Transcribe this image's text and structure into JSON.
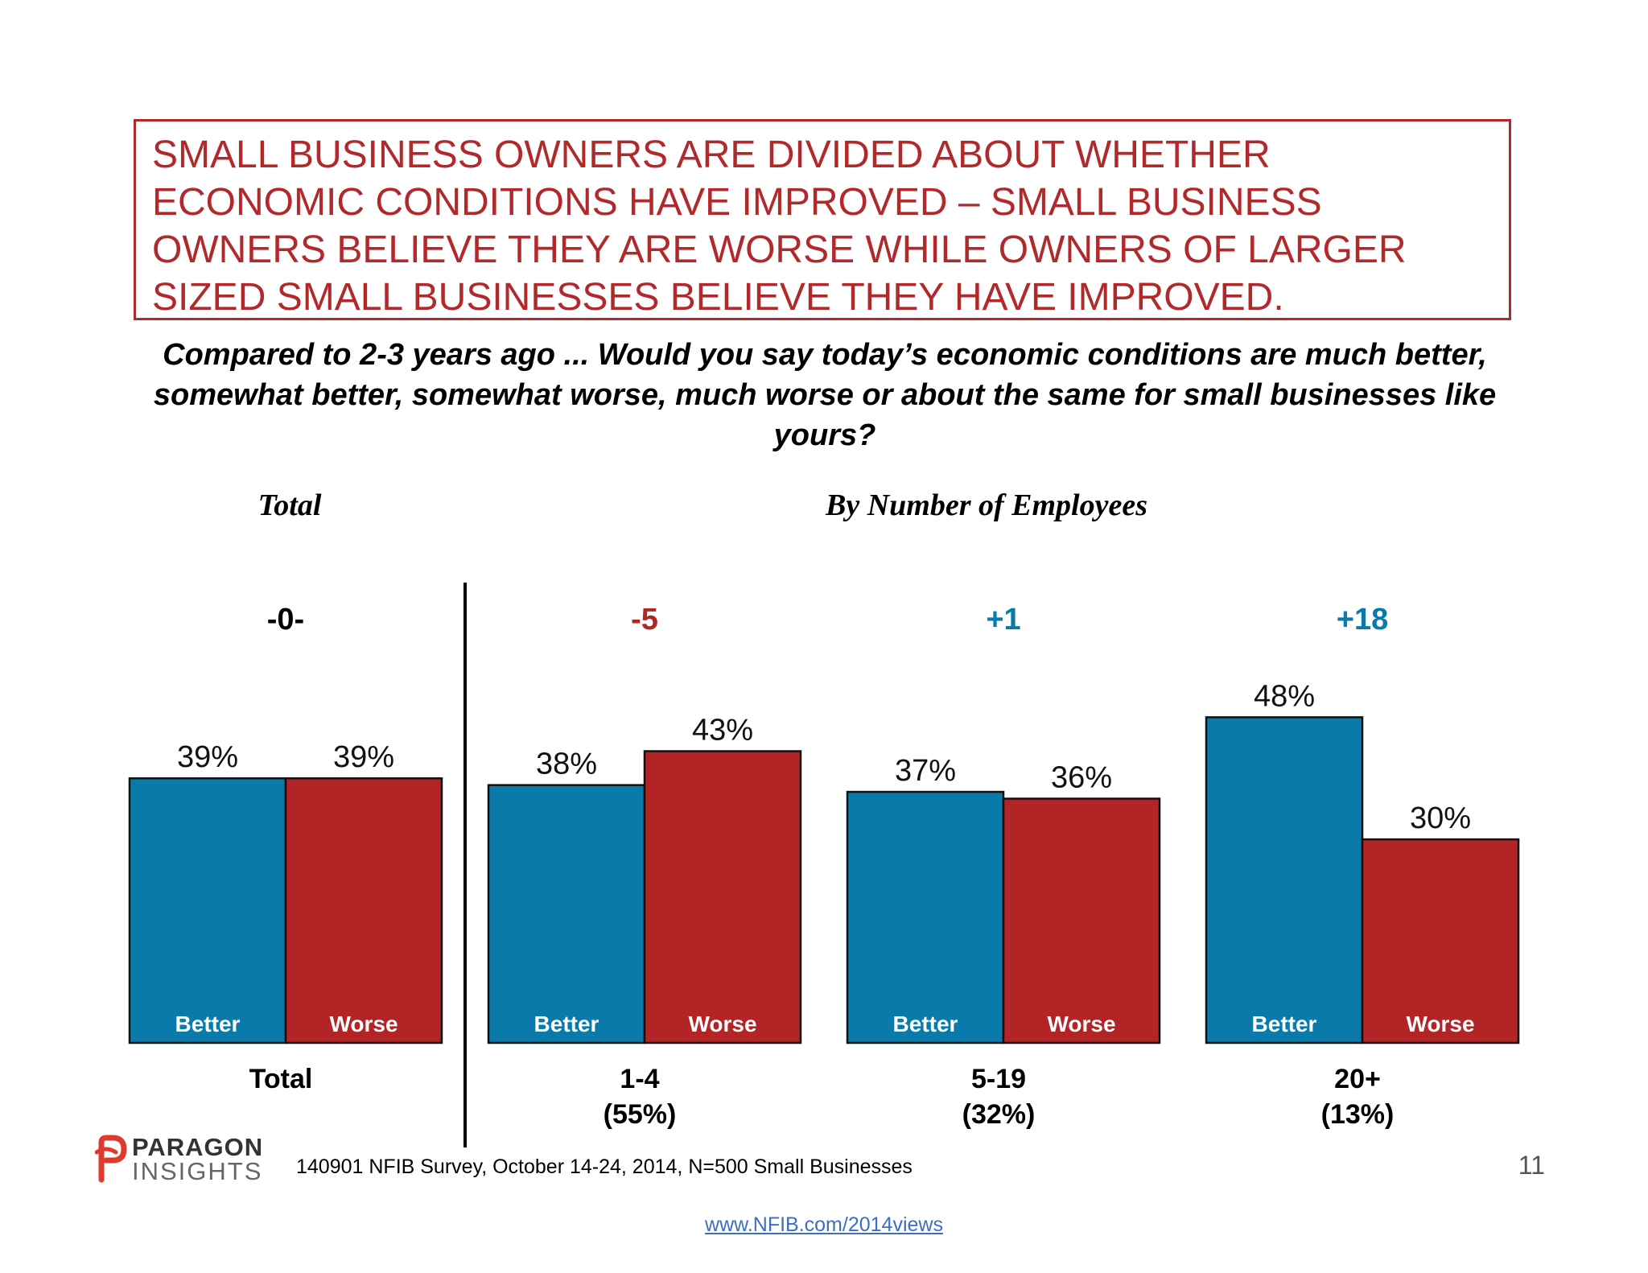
{
  "headline": "SMALL BUSINESS OWNERS ARE DIVIDED ABOUT WHETHER\nECONOMIC CONDITIONS HAVE IMPROVED – SMALL BUSINESS\nOWNERS BELIEVE THEY ARE WORSE WHILE OWNERS OF  LARGER\nSIZED SMALL BUSINESSES BELIEVE THEY HAVE IMPROVED.",
  "question": "Compared to 2-3 years ago ... Would you say today’s economic conditions are much better, somewhat better, somewhat worse, much worse or about the same for small businesses like yours?",
  "section_labels": {
    "total": "Total",
    "by_employees": "By Number of Employees"
  },
  "colors": {
    "better": "#0a7aaa",
    "worse": "#b22425",
    "negative_net": "#b22425",
    "positive_net": "#0a7aaa",
    "neutral_net": "#000000"
  },
  "chart_data": {
    "type": "bar",
    "ylim": [
      0,
      100
    ],
    "grid": false,
    "series": [
      {
        "name": "Better",
        "values": [
          39,
          38,
          37,
          48
        ]
      },
      {
        "name": "Worse",
        "values": [
          39,
          43,
          36,
          30
        ]
      }
    ],
    "groups": [
      {
        "label": "Total",
        "sublabel": "",
        "net": "-0-",
        "net_color": "neutral",
        "better": 39,
        "worse": 39,
        "better_label": "39%",
        "worse_label": "39%"
      },
      {
        "label": "1-4",
        "sublabel": "(55%)",
        "net": "-5",
        "net_color": "negative",
        "better": 38,
        "worse": 43,
        "better_label": "38%",
        "worse_label": "43%"
      },
      {
        "label": "5-19",
        "sublabel": "(32%)",
        "net": "+1",
        "net_color": "positive",
        "better": 37,
        "worse": 36,
        "better_label": "37%",
        "worse_label": "36%"
      },
      {
        "label": "20+",
        "sublabel": "(13%)",
        "net": "+18",
        "net_color": "positive",
        "better": 48,
        "worse": 30,
        "better_label": "48%",
        "worse_label": "30%"
      }
    ]
  },
  "footer": {
    "logo_line1": "PARAGON",
    "logo_line2": "INSIGHTS",
    "source": "140901 NFIB Survey, October 14-24, 2014, N=500 Small Businesses",
    "page_number": "11",
    "link": "www.NFIB.com/2014views"
  }
}
